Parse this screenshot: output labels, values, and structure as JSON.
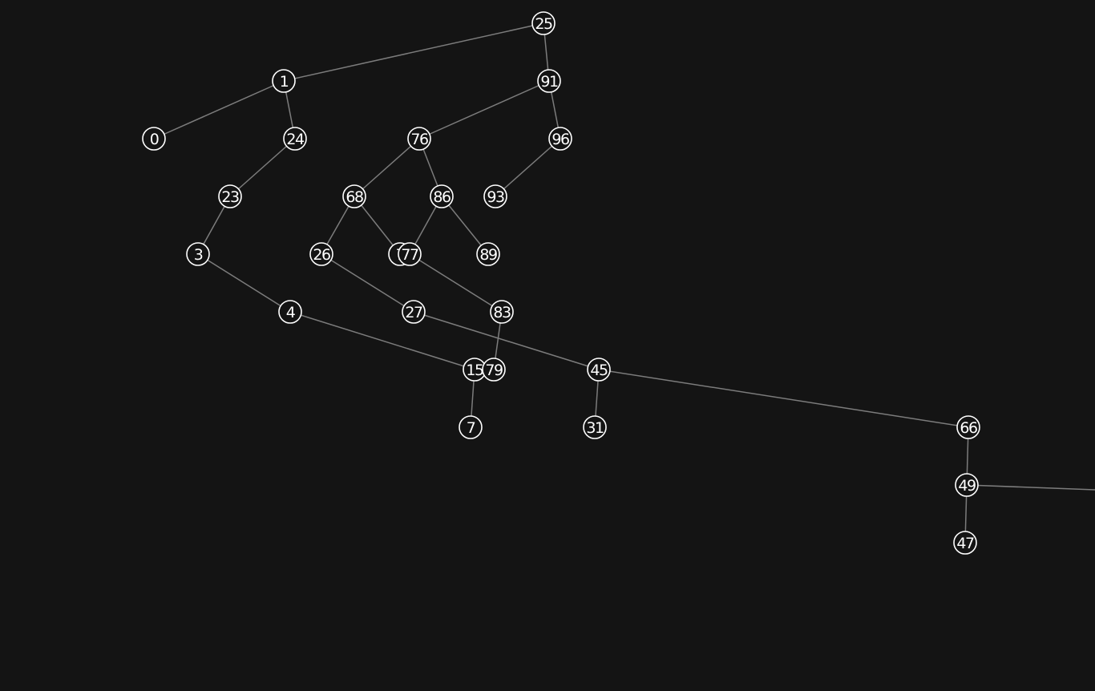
{
  "tree": {
    "nodes": [
      {
        "id": "n25",
        "label": "25"
      },
      {
        "id": "n1",
        "label": "1"
      },
      {
        "id": "n91",
        "label": "91"
      },
      {
        "id": "n0",
        "label": "0"
      },
      {
        "id": "n24",
        "label": "24"
      },
      {
        "id": "n76",
        "label": "76"
      },
      {
        "id": "n96",
        "label": "96"
      },
      {
        "id": "n23",
        "label": "23"
      },
      {
        "id": "n68",
        "label": "68"
      },
      {
        "id": "n86",
        "label": "86"
      },
      {
        "id": "n93",
        "label": "93"
      },
      {
        "id": "n3",
        "label": "3"
      },
      {
        "id": "n26",
        "label": "26"
      },
      {
        "id": "n7a",
        "label": "7"
      },
      {
        "id": "n77",
        "label": "77"
      },
      {
        "id": "n89",
        "label": "89"
      },
      {
        "id": "n4",
        "label": "4"
      },
      {
        "id": "n27",
        "label": "27"
      },
      {
        "id": "n83",
        "label": "83"
      },
      {
        "id": "n15",
        "label": "15"
      },
      {
        "id": "n79",
        "label": "79"
      },
      {
        "id": "n45",
        "label": "45"
      },
      {
        "id": "n7b",
        "label": "7"
      },
      {
        "id": "n31",
        "label": "31"
      },
      {
        "id": "n66",
        "label": "66"
      },
      {
        "id": "n49",
        "label": "49"
      },
      {
        "id": "n47",
        "label": "47"
      }
    ],
    "edges": [
      [
        "n25",
        "n1"
      ],
      [
        "n25",
        "n91"
      ],
      [
        "n1",
        "n0"
      ],
      [
        "n1",
        "n24"
      ],
      [
        "n91",
        "n76"
      ],
      [
        "n91",
        "n96"
      ],
      [
        "n24",
        "n23"
      ],
      [
        "n23",
        "n3"
      ],
      [
        "n3",
        "n4"
      ],
      [
        "n4",
        "n15"
      ],
      [
        "n15",
        "n7b"
      ],
      [
        "n76",
        "n68"
      ],
      [
        "n76",
        "n86"
      ],
      [
        "n68",
        "n26"
      ],
      [
        "n68",
        "n7a"
      ],
      [
        "n86",
        "n77"
      ],
      [
        "n86",
        "n89"
      ],
      [
        "n96",
        "n93"
      ],
      [
        "n26",
        "n27"
      ],
      [
        "n27",
        "n45"
      ],
      [
        "n77",
        "n83"
      ],
      [
        "n83",
        "n79"
      ],
      [
        "n45",
        "n31"
      ],
      [
        "n45",
        "n66"
      ],
      [
        "n66",
        "n49"
      ],
      [
        "n49",
        "n47"
      ],
      [
        "n49",
        "offscreen"
      ]
    ]
  }
}
